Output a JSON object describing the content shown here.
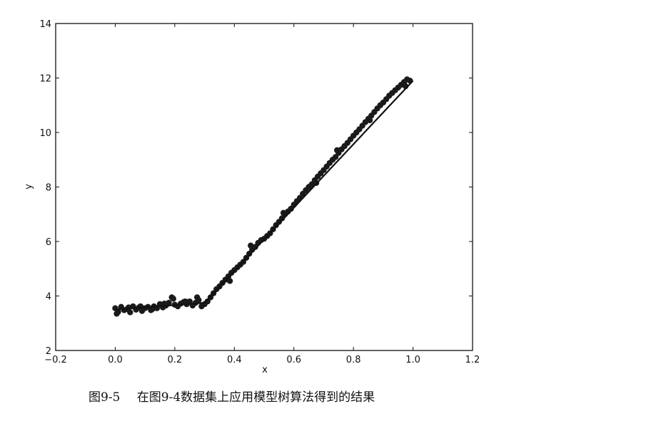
{
  "caption": {
    "figure_number": "图9-5",
    "text": "在图9-4数据集上应用模型树算法得到的结果"
  },
  "chart_data": {
    "type": "scatter",
    "title": "",
    "xlabel": "x",
    "ylabel": "y",
    "xlim": [
      -0.2,
      1.2
    ],
    "ylim": [
      2,
      14
    ],
    "xticks": [
      "−0.2",
      "0.0",
      "0.2",
      "0.4",
      "0.6",
      "0.8",
      "1.0",
      "1.2"
    ],
    "yticks": [
      "2",
      "4",
      "6",
      "8",
      "10",
      "12",
      "14"
    ],
    "xtick_values": [
      -0.2,
      0.0,
      0.2,
      0.4,
      0.6,
      0.8,
      1.0,
      1.2
    ],
    "ytick_values": [
      2,
      4,
      6,
      8,
      10,
      12,
      14
    ],
    "grid": false,
    "colors": {
      "points": "#1a1a1a",
      "line": "#111111",
      "axes": "#111111"
    },
    "series": [
      {
        "kind": "scatter",
        "points": [
          [
            0.0,
            3.55
          ],
          [
            0.01,
            3.42
          ],
          [
            0.02,
            3.6
          ],
          [
            0.03,
            3.48
          ],
          [
            0.04,
            3.52
          ],
          [
            0.05,
            3.4
          ],
          [
            0.06,
            3.62
          ],
          [
            0.07,
            3.5
          ],
          [
            0.08,
            3.58
          ],
          [
            0.09,
            3.45
          ],
          [
            0.1,
            3.55
          ],
          [
            0.11,
            3.6
          ],
          [
            0.12,
            3.48
          ],
          [
            0.13,
            3.62
          ],
          [
            0.14,
            3.55
          ],
          [
            0.15,
            3.7
          ],
          [
            0.16,
            3.58
          ],
          [
            0.17,
            3.65
          ],
          [
            0.18,
            3.75
          ],
          [
            0.19,
            3.95
          ],
          [
            0.2,
            3.68
          ],
          [
            0.21,
            3.62
          ],
          [
            0.22,
            3.72
          ],
          [
            0.23,
            3.78
          ],
          [
            0.24,
            3.7
          ],
          [
            0.25,
            3.8
          ],
          [
            0.26,
            3.65
          ],
          [
            0.27,
            3.75
          ],
          [
            0.28,
            3.85
          ],
          [
            0.29,
            3.62
          ],
          [
            0.3,
            3.7
          ],
          [
            0.31,
            3.8
          ],
          [
            0.32,
            3.95
          ],
          [
            0.33,
            4.1
          ],
          [
            0.34,
            4.25
          ],
          [
            0.35,
            4.35
          ],
          [
            0.36,
            4.48
          ],
          [
            0.37,
            4.6
          ],
          [
            0.38,
            4.72
          ],
          [
            0.39,
            4.85
          ],
          [
            0.4,
            4.95
          ],
          [
            0.41,
            5.05
          ],
          [
            0.42,
            5.15
          ],
          [
            0.43,
            5.25
          ],
          [
            0.44,
            5.4
          ],
          [
            0.45,
            5.55
          ],
          [
            0.46,
            5.7
          ],
          [
            0.47,
            5.8
          ],
          [
            0.48,
            5.95
          ],
          [
            0.49,
            6.05
          ],
          [
            0.5,
            6.1
          ],
          [
            0.51,
            6.2
          ],
          [
            0.52,
            6.3
          ],
          [
            0.53,
            6.45
          ],
          [
            0.54,
            6.6
          ],
          [
            0.55,
            6.72
          ],
          [
            0.56,
            6.85
          ],
          [
            0.57,
            7.0
          ],
          [
            0.58,
            7.1
          ],
          [
            0.59,
            7.2
          ],
          [
            0.6,
            7.35
          ],
          [
            0.61,
            7.48
          ],
          [
            0.62,
            7.6
          ],
          [
            0.63,
            7.75
          ],
          [
            0.64,
            7.88
          ],
          [
            0.65,
            8.0
          ],
          [
            0.66,
            8.1
          ],
          [
            0.67,
            8.25
          ],
          [
            0.68,
            8.38
          ],
          [
            0.69,
            8.5
          ],
          [
            0.7,
            8.62
          ],
          [
            0.71,
            8.75
          ],
          [
            0.72,
            8.88
          ],
          [
            0.73,
            9.0
          ],
          [
            0.74,
            9.1
          ],
          [
            0.75,
            9.25
          ],
          [
            0.76,
            9.38
          ],
          [
            0.77,
            9.5
          ],
          [
            0.78,
            9.62
          ],
          [
            0.79,
            9.75
          ],
          [
            0.8,
            9.88
          ],
          [
            0.81,
            10.0
          ],
          [
            0.82,
            10.12
          ],
          [
            0.83,
            10.25
          ],
          [
            0.84,
            10.38
          ],
          [
            0.85,
            10.5
          ],
          [
            0.86,
            10.62
          ],
          [
            0.87,
            10.75
          ],
          [
            0.88,
            10.88
          ],
          [
            0.89,
            11.0
          ],
          [
            0.9,
            11.1
          ],
          [
            0.91,
            11.22
          ],
          [
            0.92,
            11.35
          ],
          [
            0.93,
            11.45
          ],
          [
            0.94,
            11.55
          ],
          [
            0.95,
            11.65
          ],
          [
            0.96,
            11.75
          ],
          [
            0.97,
            11.85
          ],
          [
            0.98,
            11.95
          ],
          [
            0.99,
            11.9
          ],
          [
            0.005,
            3.35
          ],
          [
            0.045,
            3.58
          ],
          [
            0.085,
            3.62
          ],
          [
            0.125,
            3.52
          ],
          [
            0.165,
            3.72
          ],
          [
            0.195,
            3.9
          ],
          [
            0.235,
            3.8
          ],
          [
            0.275,
            3.95
          ],
          [
            0.385,
            4.55
          ],
          [
            0.455,
            5.85
          ],
          [
            0.565,
            7.05
          ],
          [
            0.675,
            8.15
          ],
          [
            0.745,
            9.35
          ],
          [
            0.855,
            10.45
          ],
          [
            0.975,
            11.7
          ]
        ]
      },
      {
        "kind": "line",
        "segments": [
          [
            [
              0.0,
              3.5
            ],
            [
              0.3,
              3.75
            ]
          ],
          [
            [
              0.3,
              3.75
            ],
            [
              1.0,
              11.9
            ]
          ]
        ]
      }
    ]
  }
}
